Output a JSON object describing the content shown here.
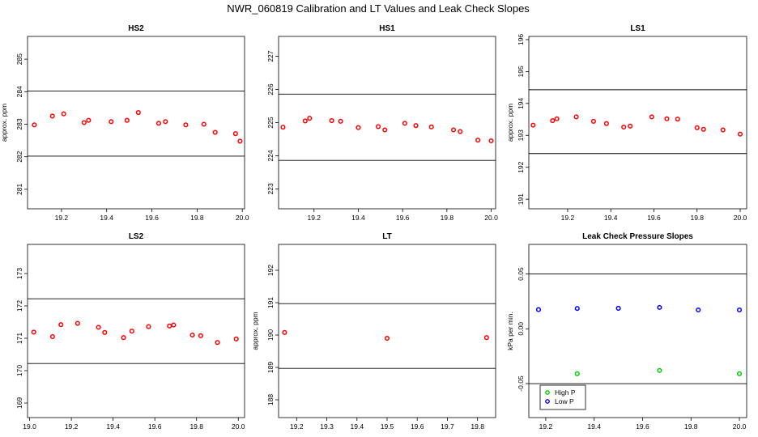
{
  "title": "NWR_060819  Calibration and LT Values and Leak Check Slopes",
  "chart_data": [
    {
      "type": "scatter",
      "title": "HS2",
      "ylabel": "approx. ppm",
      "xlim": [
        19.05,
        20.01
      ],
      "ylim": [
        280.4,
        285.7
      ],
      "xticks": [
        19.2,
        19.4,
        19.6,
        19.8,
        20.0
      ],
      "xtick_labels": [
        "19.2",
        "19.4",
        "19.6",
        "19.8",
        "20.0"
      ],
      "yticks": [
        281,
        282,
        283,
        284,
        285
      ],
      "ytick_labels": [
        "281",
        "282",
        "283",
        "284",
        "285"
      ],
      "hlines": [
        282.02,
        284.02
      ],
      "series": [
        {
          "color": "#ff0000",
          "x": [
            19.08,
            19.16,
            19.21,
            19.3,
            19.32,
            19.42,
            19.49,
            19.54,
            19.63,
            19.66,
            19.75,
            19.83,
            19.88,
            19.97,
            19.99
          ],
          "y": [
            282.98,
            283.25,
            283.32,
            283.05,
            283.12,
            283.08,
            283.12,
            283.36,
            283.03,
            283.08,
            282.98,
            283.0,
            282.75,
            282.71,
            282.48
          ]
        }
      ]
    },
    {
      "type": "scatter",
      "title": "HS1",
      "ylabel": "",
      "xlim": [
        19.04,
        20.02
      ],
      "ylim": [
        222.4,
        227.6
      ],
      "xticks": [
        19.2,
        19.4,
        19.6,
        19.8,
        20.0
      ],
      "xtick_labels": [
        "19.2",
        "19.4",
        "19.6",
        "19.8",
        "20.0"
      ],
      "yticks": [
        223,
        224,
        225,
        226,
        227
      ],
      "ytick_labels": [
        "223",
        "224",
        "225",
        "226",
        "227"
      ],
      "hlines": [
        223.86,
        225.86
      ],
      "series": [
        {
          "color": "#ff0000",
          "x": [
            19.06,
            19.16,
            19.18,
            19.28,
            19.32,
            19.4,
            19.49,
            19.52,
            19.61,
            19.66,
            19.73,
            19.83,
            19.86,
            19.94,
            20.0
          ],
          "y": [
            224.86,
            225.05,
            225.13,
            225.06,
            225.04,
            224.85,
            224.88,
            224.78,
            224.98,
            224.91,
            224.87,
            224.78,
            224.73,
            224.47,
            224.45
          ]
        }
      ]
    },
    {
      "type": "scatter",
      "title": "LS1",
      "ylabel": "approx. ppm",
      "xlim": [
        19.02,
        20.03
      ],
      "ylim": [
        190.7,
        196.1
      ],
      "xticks": [
        19.2,
        19.4,
        19.6,
        19.8,
        20.0
      ],
      "xtick_labels": [
        "19.2",
        "19.4",
        "19.6",
        "19.8",
        "20.0"
      ],
      "yticks": [
        191,
        192,
        193,
        194,
        195,
        196
      ],
      "ytick_labels": [
        "191",
        "192",
        "193",
        "194",
        "195",
        "196"
      ],
      "hlines": [
        192.43,
        194.43
      ],
      "series": [
        {
          "color": "#ff0000",
          "x": [
            19.04,
            19.13,
            19.15,
            19.24,
            19.32,
            19.38,
            19.46,
            19.49,
            19.59,
            19.66,
            19.71,
            19.8,
            19.83,
            19.92,
            20.0
          ],
          "y": [
            193.32,
            193.46,
            193.52,
            193.58,
            193.44,
            193.37,
            193.26,
            193.29,
            193.58,
            193.52,
            193.51,
            193.24,
            193.19,
            193.17,
            193.04
          ]
        }
      ]
    },
    {
      "type": "scatter",
      "title": "LS2",
      "ylabel": "",
      "xlim": [
        18.99,
        20.03
      ],
      "ylim": [
        168.55,
        173.9
      ],
      "xticks": [
        19.0,
        19.2,
        19.4,
        19.6,
        19.8,
        20.0
      ],
      "xtick_labels": [
        "19.0",
        "19.2",
        "19.4",
        "19.6",
        "19.8",
        "20.0"
      ],
      "yticks": [
        169,
        170,
        171,
        172,
        173
      ],
      "ytick_labels": [
        "169",
        "170",
        "171",
        "172",
        "173"
      ],
      "hlines": [
        170.22,
        172.22
      ],
      "series": [
        {
          "color": "#ff0000",
          "x": [
            19.02,
            19.11,
            19.15,
            19.23,
            19.33,
            19.36,
            19.45,
            19.49,
            19.57,
            19.67,
            19.69,
            19.78,
            19.82,
            19.9,
            19.99
          ],
          "y": [
            171.19,
            171.05,
            171.42,
            171.46,
            171.34,
            171.18,
            171.02,
            171.22,
            171.36,
            171.38,
            171.41,
            171.1,
            171.08,
            170.87,
            170.98
          ]
        }
      ]
    },
    {
      "type": "scatter",
      "title": "LT",
      "ylabel": "approx. ppm",
      "xlim": [
        19.14,
        19.86
      ],
      "ylim": [
        187.45,
        192.8
      ],
      "xticks": [
        19.2,
        19.3,
        19.4,
        19.5,
        19.6,
        19.7,
        19.8
      ],
      "xtick_labels": [
        "19.2",
        "19.3",
        "19.4",
        "19.5",
        "19.6",
        "19.7",
        "19.8"
      ],
      "yticks": [
        188,
        189,
        190,
        191,
        192
      ],
      "ytick_labels": [
        "188",
        "189",
        "190",
        "191",
        "192"
      ],
      "hlines": [
        188.97,
        190.97
      ],
      "series": [
        {
          "color": "#ff0000",
          "x": [
            19.16,
            19.5,
            19.83
          ],
          "y": [
            190.08,
            189.9,
            189.92
          ]
        }
      ]
    },
    {
      "type": "scatter",
      "title": "Leak Check Pressure Slopes",
      "ylabel": "kPa per min.",
      "xlim": [
        19.13,
        20.03
      ],
      "ylim": [
        -0.081,
        0.077
      ],
      "xticks": [
        19.2,
        19.4,
        19.6,
        19.8,
        20.0
      ],
      "xtick_labels": [
        "19.2",
        "19.4",
        "19.6",
        "19.8",
        "20.0"
      ],
      "yticks": [
        -0.05,
        0.0,
        0.05
      ],
      "ytick_labels": [
        "-0.05",
        "0.00",
        "0.05"
      ],
      "hlines": [
        -0.05,
        0.05
      ],
      "legend": {
        "position": "bottom-left",
        "entries": [
          "High P",
          "Low P"
        ]
      },
      "series": [
        {
          "name": "High P",
          "color": "#00cc00",
          "x": [
            19.33,
            19.67,
            20.0
          ],
          "y": [
            -0.041,
            -0.038,
            -0.041
          ]
        },
        {
          "name": "Low P",
          "color": "#0000ff",
          "x": [
            19.17,
            19.33,
            19.5,
            19.67,
            19.83,
            20.0
          ],
          "y": [
            0.0175,
            0.0185,
            0.0187,
            0.0195,
            0.0172,
            0.0172
          ]
        }
      ]
    }
  ]
}
